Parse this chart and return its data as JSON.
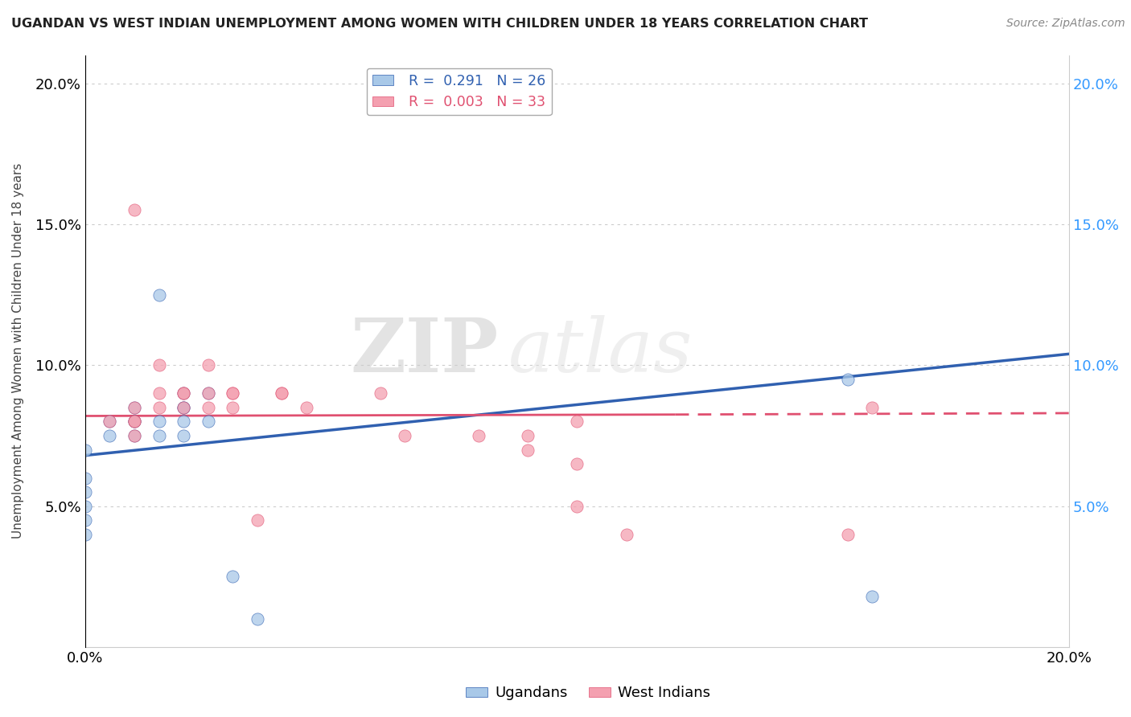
{
  "title": "UGANDAN VS WEST INDIAN UNEMPLOYMENT AMONG WOMEN WITH CHILDREN UNDER 18 YEARS CORRELATION CHART",
  "source": "Source: ZipAtlas.com",
  "ylabel": "Unemployment Among Women with Children Under 18 years",
  "xlim": [
    0.0,
    0.2
  ],
  "ylim": [
    0.0,
    0.21
  ],
  "yticks": [
    0.05,
    0.1,
    0.15,
    0.2
  ],
  "ytick_labels": [
    "5.0%",
    "10.0%",
    "15.0%",
    "20.0%"
  ],
  "ugandan_R": 0.291,
  "ugandan_N": 26,
  "west_indian_R": 0.003,
  "west_indian_N": 33,
  "ugandan_color": "#a8c8e8",
  "west_indian_color": "#f4a0b0",
  "ugandan_line_color": "#3060b0",
  "west_indian_line_color": "#e05070",
  "watermark_zip": "ZIP",
  "watermark_atlas": "atlas",
  "ugandan_x": [
    0.0,
    0.0,
    0.0,
    0.0,
    0.0,
    0.0,
    0.005,
    0.005,
    0.01,
    0.01,
    0.01,
    0.01,
    0.015,
    0.015,
    0.015,
    0.02,
    0.02,
    0.02,
    0.02,
    0.02,
    0.025,
    0.025,
    0.03,
    0.035,
    0.155,
    0.16
  ],
  "ugandan_y": [
    0.04,
    0.045,
    0.05,
    0.055,
    0.06,
    0.07,
    0.075,
    0.08,
    0.075,
    0.08,
    0.08,
    0.085,
    0.075,
    0.08,
    0.125,
    0.075,
    0.08,
    0.085,
    0.085,
    0.09,
    0.08,
    0.09,
    0.025,
    0.01,
    0.095,
    0.018
  ],
  "west_indian_x": [
    0.005,
    0.01,
    0.01,
    0.01,
    0.01,
    0.01,
    0.015,
    0.015,
    0.015,
    0.02,
    0.02,
    0.02,
    0.025,
    0.025,
    0.025,
    0.03,
    0.03,
    0.03,
    0.035,
    0.04,
    0.04,
    0.045,
    0.06,
    0.065,
    0.08,
    0.09,
    0.09,
    0.1,
    0.1,
    0.1,
    0.11,
    0.155,
    0.16
  ],
  "west_indian_y": [
    0.08,
    0.075,
    0.08,
    0.08,
    0.085,
    0.155,
    0.085,
    0.09,
    0.1,
    0.085,
    0.09,
    0.09,
    0.085,
    0.09,
    0.1,
    0.085,
    0.09,
    0.09,
    0.045,
    0.09,
    0.09,
    0.085,
    0.09,
    0.075,
    0.075,
    0.075,
    0.07,
    0.08,
    0.065,
    0.05,
    0.04,
    0.04,
    0.085
  ],
  "ugandan_line_x0": 0.0,
  "ugandan_line_y0": 0.068,
  "ugandan_line_x1": 0.2,
  "ugandan_line_y1": 0.104,
  "west_indian_line_x0": 0.0,
  "west_indian_line_y0": 0.082,
  "west_indian_line_x1": 0.2,
  "west_indian_line_y1": 0.083
}
